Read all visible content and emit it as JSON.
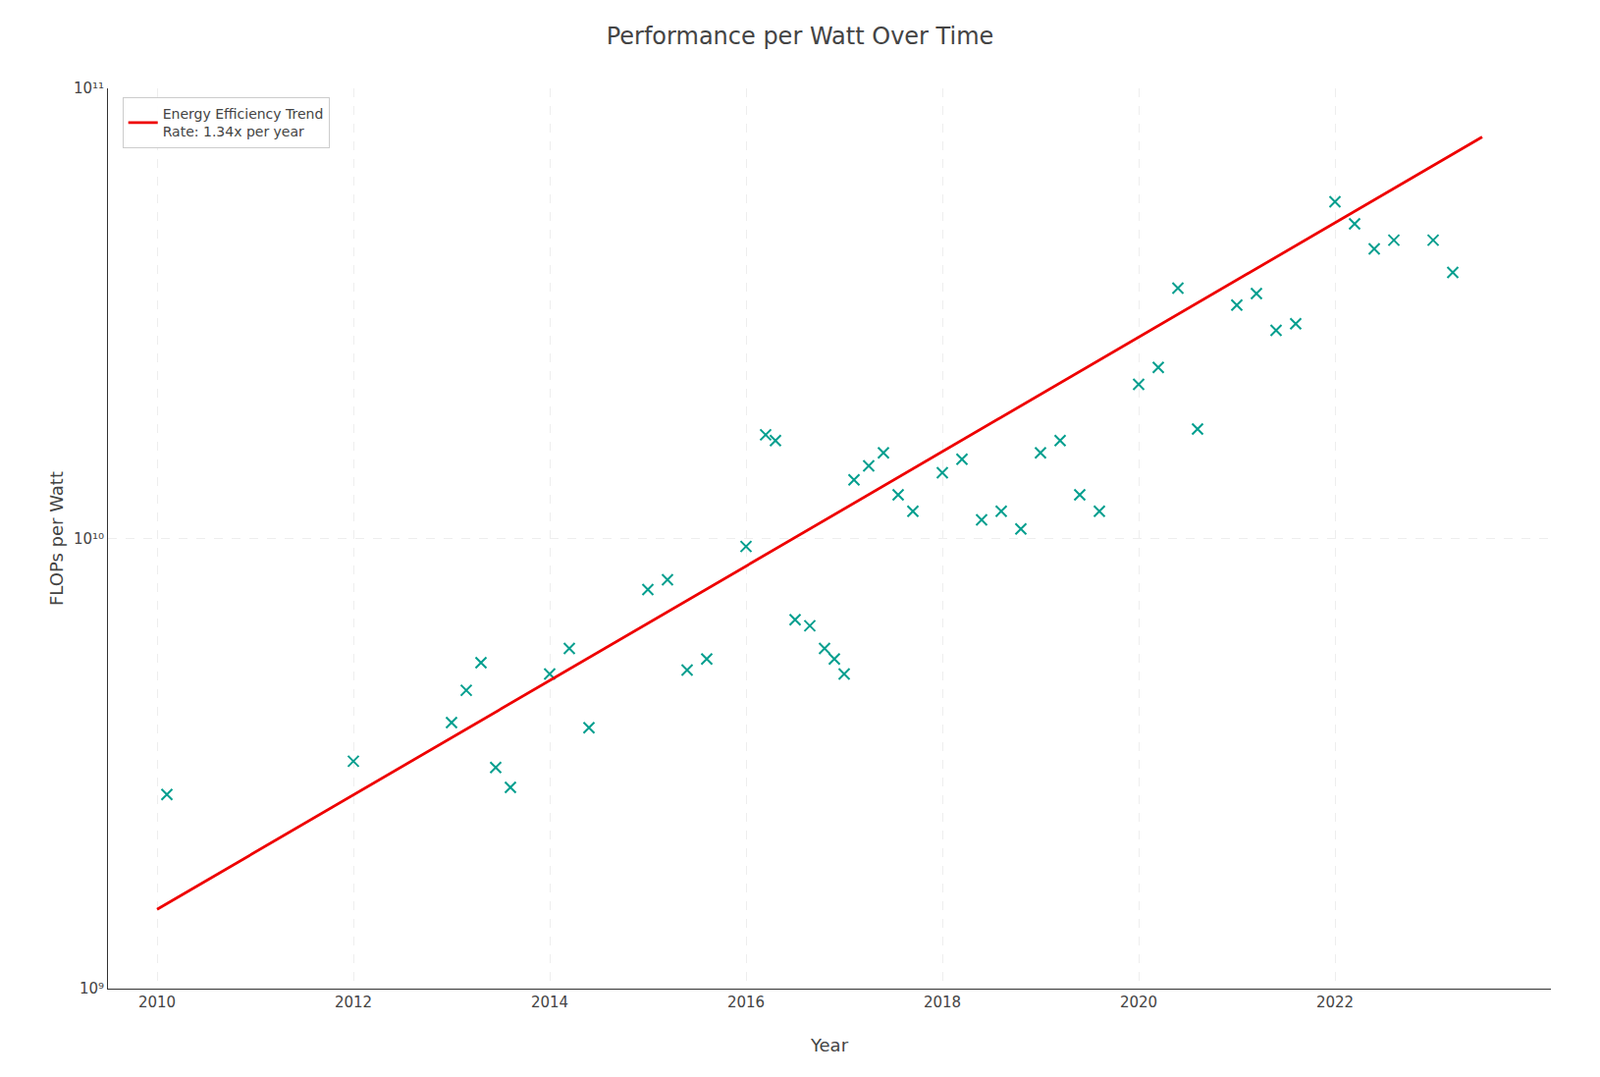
{
  "chart_data": {
    "type": "scatter",
    "title": "Performance per Watt Over Time",
    "xlabel": "Year",
    "ylabel": "FLOPs per Watt",
    "log": "y",
    "grid": true,
    "legend": "upper left",
    "xlim": [
      2009.5,
      2024.2
    ],
    "xticks": [
      2010,
      2012,
      2014,
      2016,
      2018,
      2020,
      2022
    ],
    "ylim": [
      1000000000,
      100000000000
    ],
    "yticks": [
      {
        "value": 1000000000,
        "label": "10⁹"
      },
      {
        "value": 10000000000,
        "label": "10¹⁰"
      },
      {
        "value": 100000000000,
        "label": "10¹¹"
      }
    ],
    "series": [
      {
        "type": "scatter",
        "color": "#009e8e",
        "marker": "x",
        "x": [
          2010.1,
          2012.0,
          2013.0,
          2013.15,
          2013.3,
          2013.45,
          2013.6,
          2014.0,
          2014.2,
          2014.4,
          2015.0,
          2015.2,
          2015.4,
          2015.6,
          2016.0,
          2016.2,
          2016.3,
          2016.5,
          2016.65,
          2016.8,
          2016.9,
          2017.0,
          2017.1,
          2017.25,
          2017.4,
          2017.55,
          2017.7,
          2018.0,
          2018.2,
          2018.4,
          2018.6,
          2018.8,
          2019.0,
          2019.2,
          2019.4,
          2019.6,
          2020.0,
          2020.2,
          2020.4,
          2020.6,
          2021.0,
          2021.2,
          2021.4,
          2021.6,
          2022.0,
          2022.2,
          2022.4,
          2022.6,
          2023.0,
          2023.2
        ],
        "values": [
          2700000000,
          3200000000,
          3900000000,
          4600000000,
          5300000000,
          3100000000,
          2800000000,
          5000000000,
          5700000000,
          3800000000,
          7700000000,
          8100000000,
          5100000000,
          5400000000,
          9600000000,
          17000000000,
          16500000000,
          6600000000,
          6400000000,
          5700000000,
          5400000000,
          5000000000,
          13500000000,
          14500000000,
          15500000000,
          12500000000,
          11500000000,
          14000000000,
          15000000000,
          11000000000,
          11500000000,
          10500000000,
          15500000000,
          16500000000,
          12500000000,
          11500000000,
          22000000000,
          24000000000,
          36000000000,
          17500000000,
          33000000000,
          35000000000,
          29000000000,
          30000000000,
          56000000000,
          50000000000,
          44000000000,
          46000000000,
          46000000000,
          39000000000
        ]
      },
      {
        "name": "Energy Efficiency Trend\nRate: 1.34x per year",
        "type": "line",
        "color": "#EE0000",
        "x": [
          2010.0,
          2023.5
        ],
        "values": [
          1500000000,
          77984100000
        ]
      }
    ]
  }
}
